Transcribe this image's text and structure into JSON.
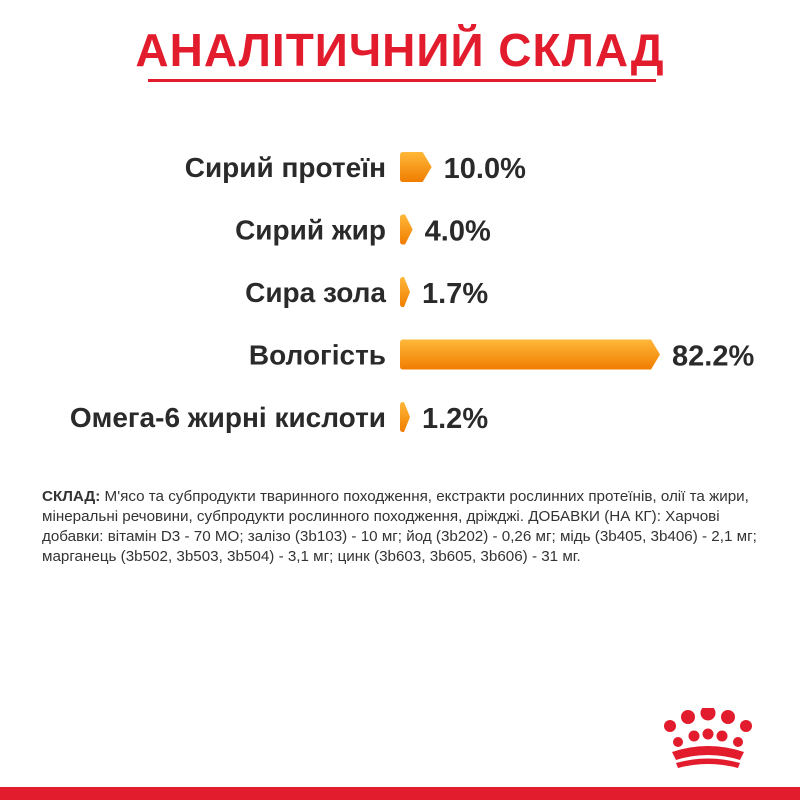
{
  "title": "АНАЛІТИЧНИЙ СКЛАД",
  "chart_data": {
    "type": "bar",
    "orientation": "horizontal",
    "categories": [
      "Сирий протеїн",
      "Сирий жир",
      "Сира зола",
      "Вологість",
      "Омега-6 жирні кислоти"
    ],
    "values": [
      10.0,
      4.0,
      1.7,
      82.2,
      1.2
    ],
    "value_labels": [
      "10.0%",
      "4.0%",
      "1.7%",
      "82.2%",
      "1.2%"
    ],
    "unit": "%",
    "xlim": [
      0,
      100
    ],
    "grid": false,
    "legend": "none",
    "bar_colors": [
      "#f7a01c",
      "#f07d00"
    ]
  },
  "composition": {
    "label": "СКЛАД:",
    "text": "М'ясо та субпродукти тваринного походження, екстракти рослинних протеїнів, олії та жири, мінеральні речовини, субпродукти рослинного походження, дріжджі. ДОБАВКИ (НА КГ): Харчові добавки: вітамін D3 - 70 МО; залізо (3b103) - 10 мг; йод (3b202) - 0,26 мг; мідь (3b405, 3b406) - 2,1 мг; марганець (3b502, 3b503, 3b504) - 3,1 мг; цинк (3b603, 3b605, 3b606) - 31 мг."
  },
  "colors": {
    "brand_red": "#e21b2d",
    "bar_orange": "#f07d00"
  },
  "logo": {
    "icon": "crown-icon"
  }
}
